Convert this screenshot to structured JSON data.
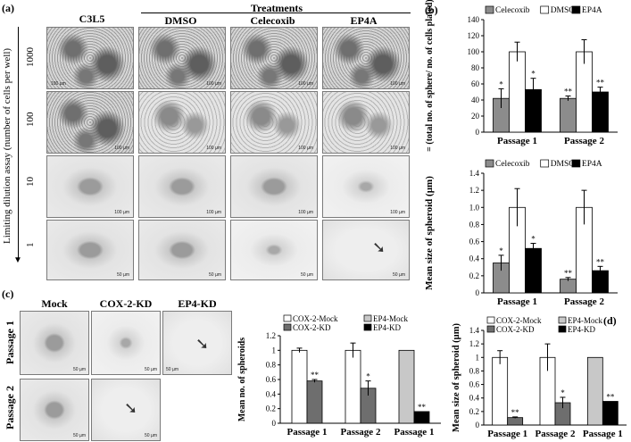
{
  "panel_a": {
    "label": "(a)",
    "treatments_header": "Treatments",
    "columns": [
      "C3L5",
      "DMSO",
      "Celecoxib",
      "EP4A"
    ],
    "y_axis_label": "Limiting dilution assay (number of cells per well)",
    "rows": [
      "1000",
      "100",
      "10",
      "1"
    ],
    "scale_label": "100 µm",
    "scale_label_small": "50 µm"
  },
  "panel_c": {
    "label": "(c)",
    "columns": [
      "Mock",
      "COX-2-KD",
      "EP4-KD"
    ],
    "rows": [
      "Passage 1",
      "Passage 2"
    ],
    "scale_label": "50 µm"
  },
  "panel_b_label": "(b)",
  "panel_d_label": "(d)",
  "chart_data": [
    {
      "id": "b_top",
      "type": "bar",
      "ylabel": "SFE = (total no. of sphere/ no. of cells plated)*100",
      "categories": [
        "Passage 1",
        "Passage 2"
      ],
      "ylim": [
        0,
        140
      ],
      "yticks": [
        "0",
        "20",
        "40",
        "60",
        "80",
        "100",
        "120",
        "140"
      ],
      "series": [
        {
          "name": "Celecoxib",
          "color": "#8c8c8c",
          "values": [
            42,
            42
          ],
          "errors": [
            12,
            3
          ],
          "sig": [
            "*",
            "**"
          ]
        },
        {
          "name": "DMSO",
          "color": "#ffffff",
          "values": [
            100,
            100
          ],
          "errors": [
            12,
            15
          ],
          "sig": [
            "",
            ""
          ]
        },
        {
          "name": "EP4A",
          "color": "#000000",
          "values": [
            53,
            50
          ],
          "errors": [
            14,
            6
          ],
          "sig": [
            "*",
            "**"
          ]
        }
      ]
    },
    {
      "id": "b_bottom",
      "type": "bar",
      "ylabel": "Mean size of spheroid (µm)",
      "categories": [
        "Passage 1",
        "Passage 2"
      ],
      "ylim": [
        0,
        1.4
      ],
      "yticks": [
        "0",
        "0.2",
        "0.4",
        "0.6",
        "0.8",
        "1.0",
        "1.2",
        "1.4"
      ],
      "series": [
        {
          "name": "Celecoxib",
          "color": "#8c8c8c",
          "values": [
            0.35,
            0.16
          ],
          "errors": [
            0.09,
            0.02
          ],
          "sig": [
            "*",
            "**"
          ]
        },
        {
          "name": "DMSO",
          "color": "#ffffff",
          "values": [
            1.0,
            1.0
          ],
          "errors": [
            0.22,
            0.2
          ],
          "sig": [
            "",
            ""
          ]
        },
        {
          "name": "EP4A",
          "color": "#000000",
          "values": [
            0.52,
            0.26
          ],
          "errors": [
            0.06,
            0.05
          ],
          "sig": [
            "*",
            "**"
          ]
        }
      ]
    },
    {
      "id": "c_chart",
      "type": "bar",
      "ylabel": "Mean no. of spheroids",
      "categories": [
        "Passage 1",
        "Passage 2",
        "Passage 1"
      ],
      "ylim": [
        0,
        1.2
      ],
      "yticks": [
        "0",
        "0.2",
        "0.4",
        "0.6",
        "0.8",
        "1",
        "1.2"
      ],
      "legend": [
        {
          "name": "COX-2-Mock",
          "color": "#ffffff"
        },
        {
          "name": "EP4-Mock",
          "color": "#c8c8c8"
        },
        {
          "name": "COX-2-KD",
          "color": "#6e6e6e"
        },
        {
          "name": "EP4-KD",
          "color": "#000000"
        }
      ],
      "groups": [
        {
          "bars": [
            {
              "color": "#ffffff",
              "value": 1.0,
              "error": 0.03,
              "sig": ""
            },
            {
              "color": "#6e6e6e",
              "value": 0.58,
              "error": 0.02,
              "sig": "**"
            }
          ]
        },
        {
          "bars": [
            {
              "color": "#ffffff",
              "value": 1.0,
              "error": 0.1,
              "sig": ""
            },
            {
              "color": "#6e6e6e",
              "value": 0.48,
              "error": 0.1,
              "sig": "*"
            }
          ]
        },
        {
          "bars": [
            {
              "color": "#c8c8c8",
              "value": 1.0,
              "error": 0,
              "sig": ""
            },
            {
              "color": "#000000",
              "value": 0.16,
              "error": 0,
              "sig": "**"
            }
          ]
        }
      ]
    },
    {
      "id": "d_chart",
      "type": "bar",
      "ylabel": "Mean  size of spheroid (µm)",
      "categories": [
        "Passage 1",
        "Passage 2",
        "Passage 1"
      ],
      "ylim": [
        0,
        1.4
      ],
      "yticks": [
        "0",
        "0.2",
        "0.4",
        "0.6",
        "0.8",
        "1",
        "1.2",
        "1.4"
      ],
      "legend": [
        {
          "name": "COX-2-Mock",
          "color": "#ffffff"
        },
        {
          "name": "EP4-Mock",
          "color": "#c8c8c8"
        },
        {
          "name": "COX-2-KD",
          "color": "#6e6e6e"
        },
        {
          "name": "EP4-KD",
          "color": "#000000"
        }
      ],
      "groups": [
        {
          "bars": [
            {
              "color": "#ffffff",
              "value": 1.0,
              "error": 0.1,
              "sig": ""
            },
            {
              "color": "#6e6e6e",
              "value": 0.11,
              "error": 0.01,
              "sig": "**"
            }
          ]
        },
        {
          "bars": [
            {
              "color": "#ffffff",
              "value": 1.0,
              "error": 0.2,
              "sig": ""
            },
            {
              "color": "#6e6e6e",
              "value": 0.33,
              "error": 0.08,
              "sig": "*"
            }
          ]
        },
        {
          "bars": [
            {
              "color": "#c8c8c8",
              "value": 1.0,
              "error": 0,
              "sig": ""
            },
            {
              "color": "#000000",
              "value": 0.35,
              "error": 0,
              "sig": "**"
            }
          ]
        }
      ]
    }
  ]
}
